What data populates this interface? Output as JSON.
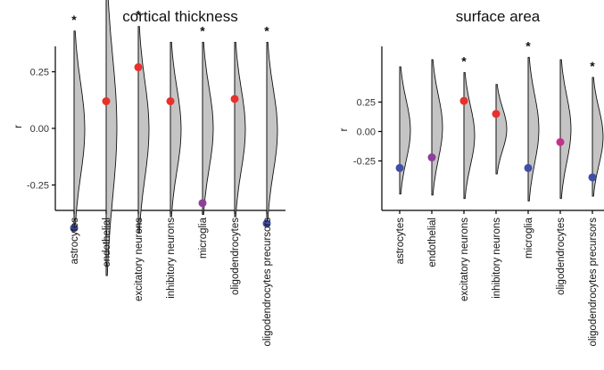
{
  "colors": {
    "red": "#e8302c",
    "blue": "#3f4fa6",
    "purple": "#8e3f9c",
    "magenta": "#c4308b",
    "violin_fill": "#c4c4c4"
  },
  "chart_data": [
    {
      "type": "violin",
      "title": "cortical thickness",
      "ylabel": "r",
      "yticks": [
        "0.25",
        "0.00",
        "-0.25"
      ],
      "ytick_values": [
        0.25,
        0.0,
        -0.25
      ],
      "ylim": [
        -0.5,
        0.5
      ],
      "categories": [
        "astrocytes",
        "endothelial",
        "excitatory neurons",
        "inhibitory neurons",
        "microglia",
        "oligodendrocytes",
        "oligodendrocytes precursors"
      ],
      "observed": [
        -0.44,
        0.12,
        0.27,
        0.12,
        -0.33,
        0.13,
        -0.42
      ],
      "point_colors": [
        "blue",
        "red",
        "red",
        "red",
        "purple",
        "red",
        "blue"
      ],
      "null_range": [
        [
          -0.44,
          0.43
        ],
        [
          -0.65,
          0.66
        ],
        [
          -0.46,
          0.45
        ],
        [
          -0.39,
          0.38
        ],
        [
          -0.38,
          0.38
        ],
        [
          -0.39,
          0.38
        ],
        [
          -0.4,
          0.38
        ]
      ],
      "significant": [
        true,
        false,
        true,
        false,
        true,
        false,
        true
      ]
    },
    {
      "type": "violin",
      "title": "surface area",
      "ylabel": "r",
      "yticks": [
        "0.25",
        "0.00",
        "-0.25"
      ],
      "ytick_values": [
        0.25,
        0.0,
        -0.25
      ],
      "ylim": [
        -0.68,
        0.68
      ],
      "categories": [
        "astrocytes",
        "endothelial",
        "excitatory neurons",
        "inhibitory neurons",
        "microglia",
        "oligodendrocytes",
        "oligodendrocytes precursors"
      ],
      "observed": [
        -0.31,
        -0.22,
        0.26,
        0.15,
        -0.31,
        -0.09,
        -0.39
      ],
      "point_colors": [
        "blue",
        "purple",
        "red",
        "red",
        "blue",
        "magenta",
        "blue"
      ],
      "null_range": [
        [
          -0.53,
          0.55
        ],
        [
          -0.54,
          0.61
        ],
        [
          -0.57,
          0.5
        ],
        [
          -0.36,
          0.4
        ],
        [
          -0.59,
          0.63
        ],
        [
          -0.57,
          0.61
        ],
        [
          -0.55,
          0.46
        ]
      ],
      "significant": [
        false,
        false,
        true,
        false,
        true,
        false,
        true
      ]
    }
  ]
}
